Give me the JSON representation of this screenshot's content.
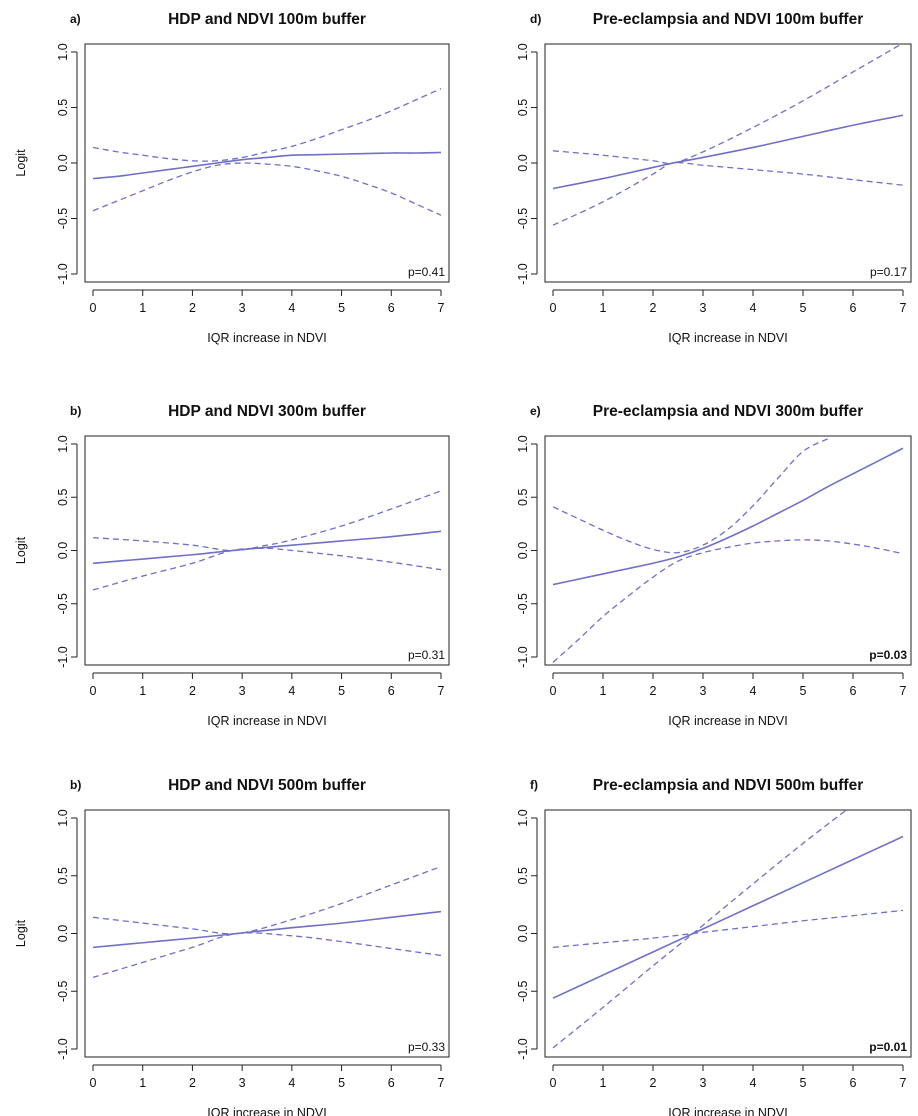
{
  "colors": {
    "line": "#6f6fc8",
    "axis": "#222222",
    "text": "#111111"
  },
  "chart_data": [
    {
      "type": "line",
      "panel": "a)",
      "title": "HDP and NDVI 100m buffer",
      "xlabel": "IQR increase in NDVI",
      "ylabel": "Logit",
      "xlim": [
        0,
        7
      ],
      "ylim": [
        -1,
        1
      ],
      "xticks": [
        0,
        1,
        2,
        3,
        4,
        5,
        6,
        7
      ],
      "yticks": [
        -1.0,
        -0.5,
        0.0,
        0.5,
        1.0
      ],
      "yticklabels": [
        "-1.0",
        "-0.5",
        "0.0",
        "0.5",
        "1.0"
      ],
      "annotation": "p=0.41",
      "annotation_bold": false,
      "x": [
        0,
        0.5,
        1,
        1.5,
        2,
        2.5,
        3,
        3.5,
        4,
        4.5,
        5,
        5.5,
        6,
        6.5,
        7
      ],
      "series": [
        {
          "role": "estimate",
          "values": [
            -0.14,
            -0.12,
            -0.09,
            -0.06,
            -0.03,
            0.0,
            0.03,
            0.05,
            0.07,
            0.075,
            0.08,
            0.085,
            0.09,
            0.09,
            0.095
          ]
        },
        {
          "role": "upper-ci",
          "values": [
            0.14,
            0.1,
            0.07,
            0.04,
            0.02,
            0.02,
            0.05,
            0.1,
            0.15,
            0.22,
            0.3,
            0.38,
            0.47,
            0.57,
            0.67
          ]
        },
        {
          "role": "lower-ci",
          "values": [
            -0.43,
            -0.34,
            -0.25,
            -0.16,
            -0.08,
            -0.02,
            0.0,
            -0.01,
            -0.03,
            -0.07,
            -0.12,
            -0.19,
            -0.27,
            -0.37,
            -0.47
          ]
        }
      ]
    },
    {
      "type": "line",
      "panel": "b)",
      "title": "HDP and NDVI 300m buffer",
      "xlabel": "IQR increase in NDVI",
      "ylabel": "Logit",
      "xlim": [
        0,
        7
      ],
      "ylim": [
        -1,
        1
      ],
      "xticks": [
        0,
        1,
        2,
        3,
        4,
        5,
        6,
        7
      ],
      "yticks": [
        -1.0,
        -0.5,
        0.0,
        0.5,
        1.0
      ],
      "yticklabels": [
        "-1.0",
        "-0.5",
        "0.0",
        "0.5",
        "1.0"
      ],
      "annotation": "p=0.31",
      "annotation_bold": false,
      "x": [
        0,
        1,
        2,
        2.8,
        3.5,
        4,
        5,
        6,
        7
      ],
      "series": [
        {
          "role": "estimate",
          "values": [
            -0.12,
            -0.08,
            -0.04,
            0.0,
            0.03,
            0.05,
            0.09,
            0.13,
            0.18
          ]
        },
        {
          "role": "upper-ci",
          "values": [
            0.12,
            0.09,
            0.05,
            0.0,
            0.05,
            0.1,
            0.23,
            0.39,
            0.56
          ]
        },
        {
          "role": "lower-ci",
          "values": [
            -0.37,
            -0.24,
            -0.12,
            0.0,
            0.02,
            0.0,
            -0.05,
            -0.11,
            -0.18
          ]
        }
      ]
    },
    {
      "type": "line",
      "panel": "b)",
      "title": "HDP and NDVI 500m buffer",
      "xlabel": "IQR increase in NDVI",
      "ylabel": "Logit",
      "xlim": [
        0,
        7
      ],
      "ylim": [
        -1,
        1
      ],
      "xticks": [
        0,
        1,
        2,
        3,
        4,
        5,
        6,
        7
      ],
      "yticks": [
        -1.0,
        -0.5,
        0.0,
        0.5,
        1.0
      ],
      "yticklabels": [
        "-1.0",
        "-0.5",
        "0.0",
        "0.5",
        "1.0"
      ],
      "annotation": "p=0.33",
      "annotation_bold": false,
      "x": [
        0,
        1,
        2,
        2.9,
        4,
        5,
        6,
        7
      ],
      "series": [
        {
          "role": "estimate",
          "values": [
            -0.12,
            -0.08,
            -0.04,
            0.0,
            0.05,
            0.09,
            0.14,
            0.19
          ]
        },
        {
          "role": "upper-ci",
          "values": [
            0.14,
            0.09,
            0.04,
            0.0,
            0.12,
            0.26,
            0.42,
            0.58
          ]
        },
        {
          "role": "lower-ci",
          "values": [
            -0.38,
            -0.25,
            -0.12,
            0.0,
            -0.02,
            -0.07,
            -0.13,
            -0.19
          ]
        }
      ]
    },
    {
      "type": "line",
      "panel": "d)",
      "title": "Pre-eclampsia and NDVI 100m buffer",
      "xlabel": "IQR increase in NDVI",
      "ylabel": "",
      "xlim": [
        0,
        7
      ],
      "ylim": [
        -1,
        1
      ],
      "xticks": [
        0,
        1,
        2,
        3,
        4,
        5,
        6,
        7
      ],
      "yticks": [
        -1.0,
        -0.5,
        0.0,
        0.5,
        1.0
      ],
      "yticklabels": [
        "-1.0",
        "-0.5",
        "0.0",
        "0.5",
        "1.0"
      ],
      "annotation": "p=0.17",
      "annotation_bold": false,
      "x": [
        0,
        1,
        2,
        2.4,
        3,
        4,
        5,
        6,
        7
      ],
      "series": [
        {
          "role": "estimate",
          "values": [
            -0.23,
            -0.14,
            -0.04,
            0.0,
            0.05,
            0.14,
            0.24,
            0.34,
            0.43
          ]
        },
        {
          "role": "upper-ci",
          "values": [
            0.11,
            0.07,
            0.02,
            0.0,
            0.1,
            0.32,
            0.56,
            0.82,
            1.08
          ]
        },
        {
          "role": "lower-ci",
          "values": [
            -0.56,
            -0.35,
            -0.1,
            0.0,
            -0.02,
            -0.06,
            -0.1,
            -0.15,
            -0.2
          ]
        }
      ]
    },
    {
      "type": "line",
      "panel": "e)",
      "title": "Pre-eclampsia and NDVI 300m buffer",
      "xlabel": "IQR increase in NDVI",
      "ylabel": "",
      "xlim": [
        0,
        7
      ],
      "ylim": [
        -1,
        1
      ],
      "xticks": [
        0,
        1,
        2,
        3,
        4,
        5,
        6,
        7
      ],
      "yticks": [
        -1.0,
        -0.5,
        0.0,
        0.5,
        1.0
      ],
      "yticklabels": [
        "-1.0",
        "-0.5",
        "0.0",
        "0.5",
        "1.0"
      ],
      "annotation": "p=0.03",
      "annotation_bold": true,
      "x": [
        0,
        0.5,
        1,
        1.5,
        2,
        2.5,
        3,
        3.5,
        4,
        4.5,
        5,
        5.5,
        6,
        6.5,
        7
      ],
      "series": [
        {
          "role": "estimate",
          "values": [
            -0.32,
            -0.27,
            -0.22,
            -0.17,
            -0.12,
            -0.06,
            0.02,
            0.12,
            0.23,
            0.35,
            0.47,
            0.6,
            0.72,
            0.84,
            0.96
          ]
        },
        {
          "role": "upper-ci",
          "values": [
            0.41,
            0.3,
            0.19,
            0.09,
            0.01,
            -0.02,
            0.05,
            0.2,
            0.42,
            0.68,
            0.93,
            1.05,
            null,
            null,
            null
          ]
        },
        {
          "role": "lower-ci",
          "values": [
            -1.05,
            -0.84,
            -0.62,
            -0.43,
            -0.25,
            -0.1,
            -0.02,
            0.03,
            0.07,
            0.09,
            0.1,
            0.09,
            0.06,
            0.02,
            -0.03
          ]
        }
      ]
    },
    {
      "type": "line",
      "panel": "f)",
      "title": "Pre-eclampsia and NDVI 500m buffer",
      "xlabel": "IQR increase in NDVI",
      "ylabel": "",
      "xlim": [
        0,
        7
      ],
      "ylim": [
        -1,
        1
      ],
      "xticks": [
        0,
        1,
        2,
        3,
        4,
        5,
        6,
        7
      ],
      "yticks": [
        -1.0,
        -0.5,
        0.0,
        0.5,
        1.0
      ],
      "yticklabels": [
        "-1.0",
        "-0.5",
        "0.0",
        "0.5",
        "1.0"
      ],
      "annotation": "p=0.01",
      "annotation_bold": true,
      "x": [
        0,
        1,
        2,
        2.8,
        4,
        5,
        5.9,
        7
      ],
      "series": [
        {
          "role": "estimate",
          "values": [
            -0.56,
            -0.36,
            -0.16,
            0.0,
            0.24,
            0.44,
            0.62,
            0.84
          ]
        },
        {
          "role": "upper-ci",
          "values": [
            -0.12,
            -0.08,
            -0.04,
            0.0,
            0.06,
            0.11,
            0.15,
            0.2
          ]
        },
        {
          "role": "lower-ci",
          "values": [
            -0.99,
            -0.64,
            -0.28,
            0.0,
            0.43,
            0.78,
            1.08,
            null
          ]
        }
      ]
    }
  ]
}
